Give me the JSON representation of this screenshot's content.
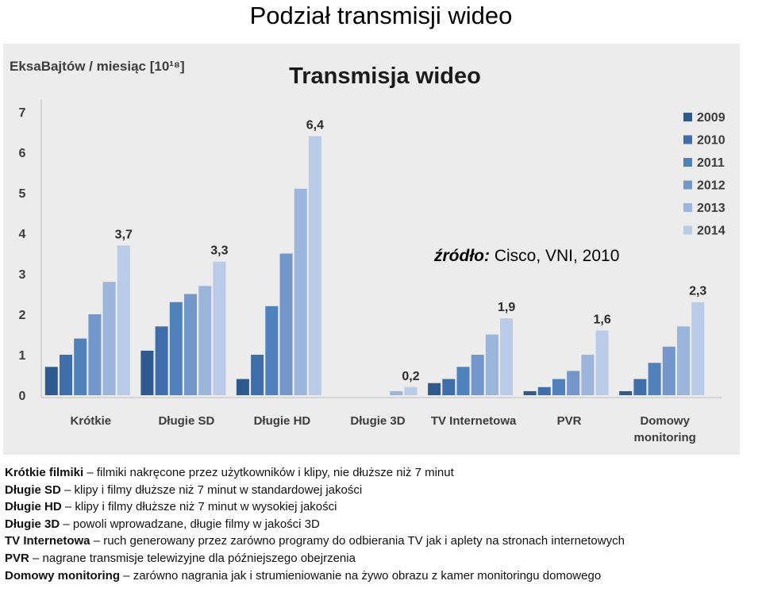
{
  "slide": {
    "title": "Podział transmisji wideo"
  },
  "chart_data": {
    "type": "bar",
    "title": "Transmisja wideo",
    "ylabel": "EksaBajtów / miesiąc [10¹⁸]",
    "ylim": [
      0,
      7
    ],
    "yticks": [
      0,
      1,
      2,
      3,
      4,
      5,
      6,
      7
    ],
    "grid": false,
    "legend_position": "top-right",
    "categories": [
      "Krótkie",
      "Długie SD",
      "Długie HD",
      "Długie 3D",
      "TV Internetowa",
      "PVR",
      "Domowy monitoring"
    ],
    "series": [
      {
        "name": "2009",
        "color": "#2e5a8f",
        "values": [
          0.7,
          1.1,
          0.4,
          0.0,
          0.3,
          0.1,
          0.1
        ]
      },
      {
        "name": "2010",
        "color": "#3f6eab",
        "values": [
          1.0,
          1.7,
          1.0,
          0.0,
          0.4,
          0.2,
          0.4
        ]
      },
      {
        "name": "2011",
        "color": "#4f81bd",
        "values": [
          1.4,
          2.3,
          2.2,
          0.0,
          0.7,
          0.4,
          0.8
        ]
      },
      {
        "name": "2012",
        "color": "#7396cb",
        "values": [
          2.0,
          2.5,
          3.5,
          0.0,
          1.0,
          0.6,
          1.2
        ]
      },
      {
        "name": "2013",
        "color": "#9cb5dc",
        "values": [
          2.8,
          2.7,
          5.1,
          0.1,
          1.5,
          1.0,
          1.7
        ]
      },
      {
        "name": "2014",
        "color": "#bacbe8",
        "values": [
          3.7,
          3.3,
          6.4,
          0.2,
          1.9,
          1.6,
          2.3
        ]
      }
    ],
    "data_labels": [
      "3,7",
      "3,3",
      "6,4",
      "0,2",
      "1,9",
      "1,6",
      "2,3"
    ],
    "annotation": {
      "bold": "źródło:",
      "text": " Cisco, VNI, 2010"
    }
  },
  "descriptions": [
    {
      "term": "Krótkie filmiki",
      "text": "filmiki nakręcone przez użytkowników i klipy, nie dłuższe niż 7 minut"
    },
    {
      "term": "Długie SD",
      "text": "klipy i filmy dłuższe niż 7 minut w standardowej jakości"
    },
    {
      "term": "Długie HD",
      "text": "klipy i filmy dłuższe niż 7 minut w wysokiej jakości"
    },
    {
      "term": "Długie 3D",
      "text": "powoli wprowadzane, długie filmy w jakości 3D"
    },
    {
      "term": "TV Internetowa",
      "text": "ruch generowany przez zarówno programy do odbierania TV jak i aplety na stronach internetowych"
    },
    {
      "term": "PVR",
      "text": "nagrane transmisje telewizyjne dla późniejszego obejrzenia"
    },
    {
      "term": "Domowy monitoring",
      "text": "zarówno nagrania jak i strumieniowanie na żywo obrazu z kamer monitoringu domowego"
    }
  ]
}
